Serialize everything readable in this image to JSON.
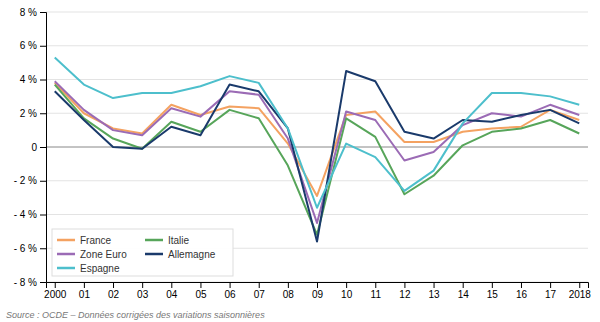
{
  "chart_data": {
    "type": "line",
    "categories": [
      "2000",
      "01",
      "02",
      "03",
      "04",
      "05",
      "06",
      "07",
      "08",
      "09",
      "10",
      "11",
      "12",
      "13",
      "14",
      "15",
      "16",
      "17",
      "2018"
    ],
    "series": [
      {
        "name": "France",
        "color": "#F4A261",
        "values": [
          3.8,
          2.0,
          1.1,
          0.8,
          2.5,
          1.9,
          2.4,
          2.3,
          0.2,
          -2.9,
          1.9,
          2.1,
          0.3,
          0.3,
          0.9,
          1.1,
          1.2,
          2.2,
          1.6
        ]
      },
      {
        "name": "Italie",
        "color": "#57A55A",
        "values": [
          3.7,
          1.7,
          0.5,
          -0.1,
          1.5,
          0.9,
          2.2,
          1.7,
          -1.1,
          -5.2,
          1.7,
          0.6,
          -2.8,
          -1.7,
          0.1,
          0.9,
          1.1,
          1.6,
          0.8
        ]
      },
      {
        "name": "Zone Euro",
        "color": "#9B6BB5",
        "values": [
          3.9,
          2.2,
          1.0,
          0.7,
          2.3,
          1.8,
          3.3,
          3.1,
          0.5,
          -4.5,
          2.1,
          1.6,
          -0.8,
          -0.3,
          1.3,
          2.0,
          1.8,
          2.5,
          1.9
        ]
      },
      {
        "name": "Allemagne",
        "color": "#1A3A6B",
        "values": [
          3.3,
          1.6,
          0.0,
          -0.1,
          1.2,
          0.7,
          3.7,
          3.3,
          1.1,
          -5.6,
          4.5,
          3.9,
          0.9,
          0.5,
          1.6,
          1.5,
          1.9,
          2.2,
          1.4
        ]
      },
      {
        "name": "Espagne",
        "color": "#4DBFCC",
        "values": [
          5.3,
          3.7,
          2.9,
          3.2,
          3.2,
          3.6,
          4.2,
          3.8,
          1.1,
          -3.6,
          0.2,
          -0.6,
          -2.6,
          -1.4,
          1.4,
          3.2,
          3.2,
          3.0,
          2.5
        ]
      }
    ],
    "ylim": [
      -8,
      8
    ],
    "yticks": [
      {
        "value": -8,
        "label": "- 8 %"
      },
      {
        "value": -6,
        "label": "- 6 %"
      },
      {
        "value": -4,
        "label": "- 4 %"
      },
      {
        "value": -2,
        "label": "- 2 %"
      },
      0,
      {
        "value": 2,
        "label": "2 %"
      },
      {
        "value": 4,
        "label": "4 %"
      },
      {
        "value": 6,
        "label": "6 %"
      },
      {
        "value": 8,
        "label": "8 %"
      }
    ],
    "grid": true,
    "legend": "lower left",
    "annotations": [
      "Source : OCDE – Données corrigées des variations saisonnières"
    ]
  }
}
